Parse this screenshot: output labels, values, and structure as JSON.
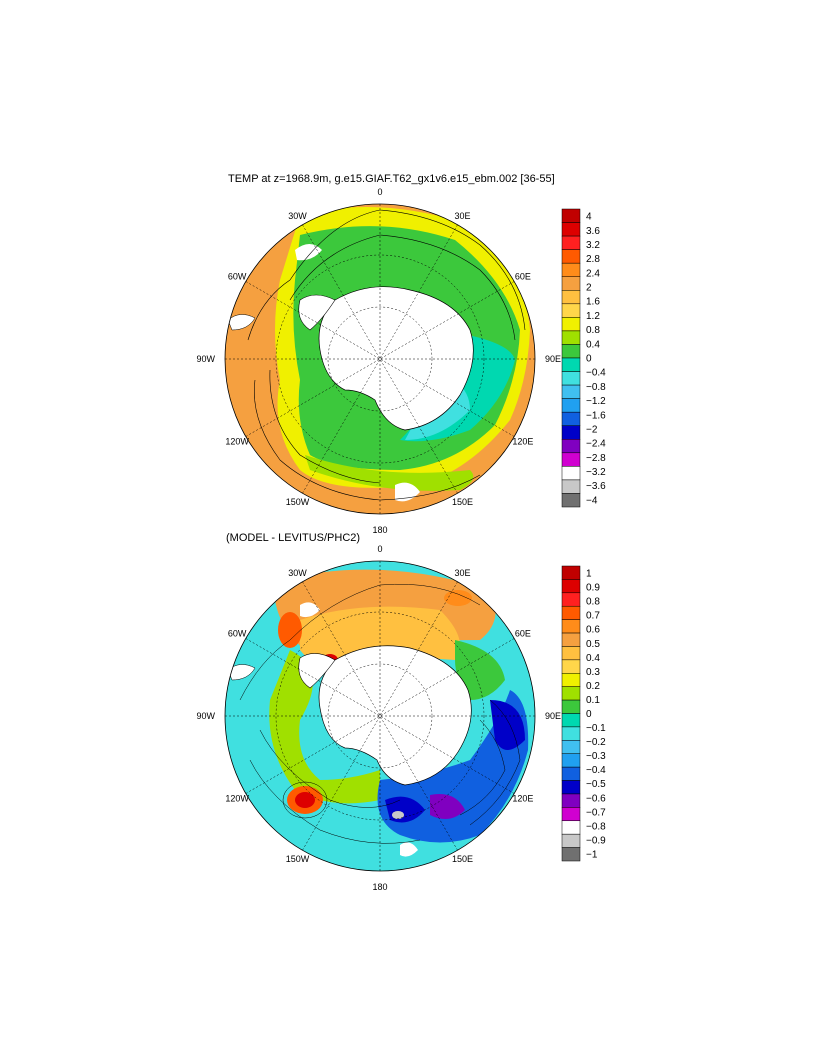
{
  "panels": [
    {
      "title": "TEMP at z=1968.9m, g.e15.GIAF.T62_gx1v6.e15_ebm.002 [36-55]",
      "lon_labels": [
        "0",
        "30E",
        "60E",
        "90E",
        "120E",
        "150E",
        "180",
        "150W",
        "120W",
        "90W",
        "60W",
        "30W"
      ],
      "colorbar": {
        "labels": [
          "4",
          "3.6",
          "3.2",
          "2.8",
          "2.4",
          "2",
          "1.6",
          "1.2",
          "0.8",
          "0.4",
          "0",
          "−0.4",
          "−0.8",
          "−1.2",
          "−1.6",
          "−2",
          "−2.4",
          "−2.8",
          "−3.2",
          "−3.6",
          "−4"
        ],
        "colors": [
          "#c00000",
          "#dd0000",
          "#ff2020",
          "#ff5a00",
          "#ff8c1a",
          "#f5a040",
          "#ffc040",
          "#ffd64a",
          "#f0f000",
          "#a0e000",
          "#3cc83c",
          "#00d8b0",
          "#40e0e0",
          "#40c0f0",
          "#20a0f0",
          "#1060e0",
          "#0000c8",
          "#8000c0",
          "#d000d0",
          "#ffffff",
          "#c8c8c8",
          "#707070"
        ]
      }
    },
    {
      "title": "(MODEL - LEVITUS/PHC2)",
      "lon_labels": [
        "0",
        "30E",
        "60E",
        "90E",
        "120E",
        "150E",
        "180",
        "150W",
        "120W",
        "90W",
        "60W",
        "30W"
      ],
      "colorbar": {
        "labels": [
          "1",
          "0.9",
          "0.8",
          "0.7",
          "0.6",
          "0.5",
          "0.4",
          "0.3",
          "0.2",
          "0.1",
          "0",
          "−0.1",
          "−0.2",
          "−0.3",
          "−0.4",
          "−0.5",
          "−0.6",
          "−0.7",
          "−0.8",
          "−0.9",
          "−1"
        ],
        "colors": [
          "#c00000",
          "#dd0000",
          "#ff2020",
          "#ff5a00",
          "#ff8c1a",
          "#f5a040",
          "#ffc040",
          "#ffd64a",
          "#f0f000",
          "#a0e000",
          "#3cc83c",
          "#00d8b0",
          "#40e0e0",
          "#40c0f0",
          "#20a0f0",
          "#1060e0",
          "#0000c8",
          "#8000c0",
          "#d000d0",
          "#ffffff",
          "#c8c8c8",
          "#707070"
        ]
      }
    }
  ]
}
